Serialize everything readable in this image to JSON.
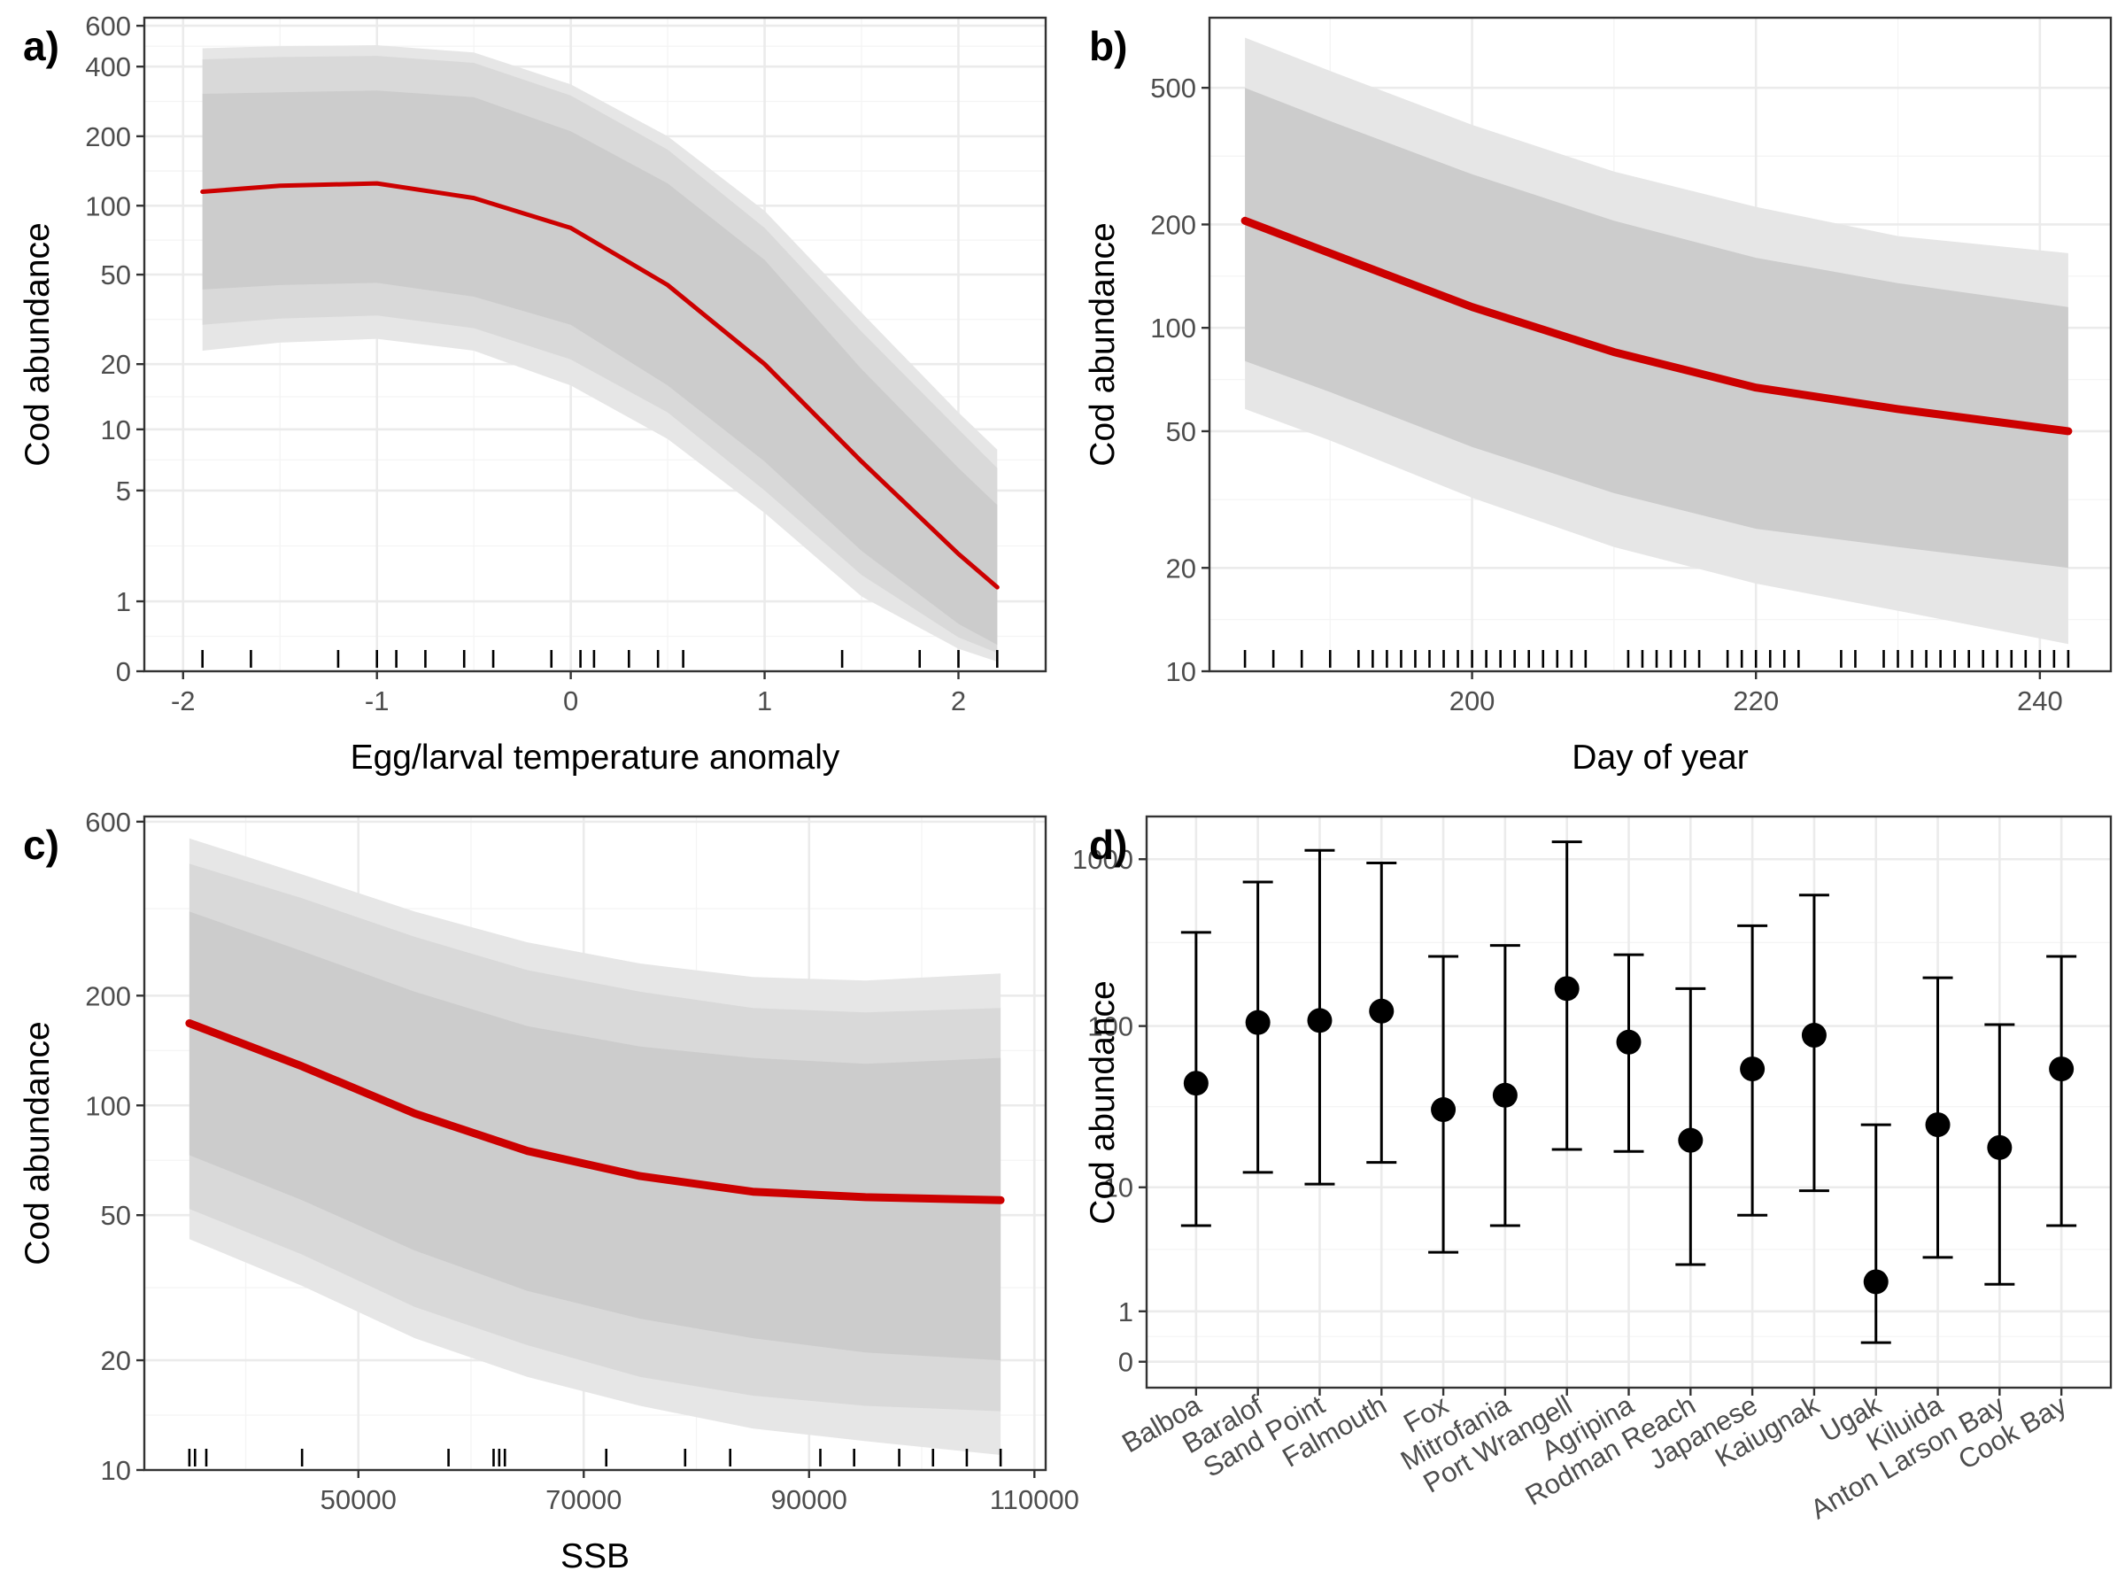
{
  "chart_data": [
    {
      "id": "a",
      "type": "line",
      "panel_label": "a)",
      "xlabel": "Egg/larval temperature anomaly",
      "ylabel": "Cod abundance",
      "y_scale": "log1p",
      "xlim": [
        -2.2,
        2.45
      ],
      "ylim": [
        0,
        650
      ],
      "x_ticks": [
        -2,
        -1,
        0,
        1,
        2
      ],
      "x_tick_labels": [
        "-2",
        "-1",
        "0",
        "1",
        "2"
      ],
      "y_ticks": [
        0,
        1,
        5,
        10,
        20,
        50,
        100,
        200,
        400,
        600
      ],
      "y_tick_labels": [
        "0",
        "1",
        "5",
        "10",
        "20",
        "50",
        "100",
        "200",
        "400",
        "600"
      ],
      "x": [
        -1.9,
        -1.5,
        -1.0,
        -0.5,
        0.0,
        0.5,
        1.0,
        1.5,
        2.0,
        2.2
      ],
      "fit": [
        115,
        122,
        125,
        108,
        80,
        45,
        20,
        7,
        2.2,
        1.3
      ],
      "inner_lower": [
        43,
        45,
        46,
        40,
        30,
        16,
        7,
        2.3,
        0.6,
        0.3
      ],
      "inner_upper": [
        305,
        310,
        315,
        295,
        210,
        125,
        58,
        19,
        6.5,
        4.2
      ],
      "mid_lower": [
        30,
        32,
        33,
        29,
        21,
        12,
        5,
        1.6,
        0.4,
        0.2
      ],
      "mid_upper": [
        430,
        440,
        445,
        415,
        300,
        175,
        80,
        28,
        10,
        6.5
      ],
      "outer_lower": [
        23,
        25,
        26,
        23,
        16,
        9,
        3.8,
        1.1,
        0.25,
        0.1
      ],
      "outer_upper": [
        480,
        490,
        495,
        460,
        335,
        200,
        95,
        34,
        12,
        8
      ],
      "rug": [
        -1.9,
        -1.65,
        -1.2,
        -1.0,
        -0.9,
        -0.75,
        -0.55,
        -0.4,
        -0.1,
        0.05,
        0.12,
        0.3,
        0.45,
        0.58,
        1.4,
        1.8,
        2.0,
        2.2
      ]
    },
    {
      "id": "b",
      "type": "line",
      "panel_label": "b)",
      "xlabel": "Day of year",
      "ylabel": "Cod abundance",
      "y_scale": "log",
      "xlim": [
        181.5,
        245.0
      ],
      "ylim": [
        10,
        800
      ],
      "x_ticks": [
        200,
        220,
        240
      ],
      "x_tick_labels": [
        "200",
        "220",
        "240"
      ],
      "y_ticks": [
        10,
        20,
        50,
        100,
        200,
        500
      ],
      "y_tick_labels": [
        "10",
        "20",
        "50",
        "100",
        "200",
        "500"
      ],
      "x": [
        184,
        190,
        200,
        210,
        220,
        230,
        242
      ],
      "fit": [
        205,
        165,
        115,
        85,
        67,
        58,
        50
      ],
      "inner_lower": [
        80,
        65,
        45,
        33,
        26,
        23,
        20
      ],
      "inner_upper": [
        500,
        400,
        280,
        205,
        160,
        135,
        115
      ],
      "outer_lower": [
        58,
        47,
        32,
        23,
        18,
        15,
        12
      ],
      "outer_upper": [
        700,
        560,
        390,
        285,
        225,
        185,
        165
      ],
      "rug": [
        184,
        186,
        188,
        190,
        192,
        193,
        194,
        195,
        196,
        197,
        198,
        199,
        200,
        201,
        202,
        203,
        204,
        205,
        206,
        207,
        208,
        211,
        212,
        213,
        214,
        215,
        216,
        218,
        219,
        220,
        221,
        222,
        223,
        226,
        227,
        229,
        230,
        231,
        232,
        233,
        234,
        235,
        236,
        237,
        238,
        239,
        240,
        241,
        242
      ]
    },
    {
      "id": "c",
      "type": "line",
      "panel_label": "c)",
      "xlabel": "SSB",
      "ylabel": "Cod abundance",
      "y_scale": "log",
      "xlim": [
        31000,
        111000
      ],
      "ylim": [
        10,
        620
      ],
      "x_ticks": [
        50000,
        70000,
        90000,
        110000
      ],
      "x_tick_labels": [
        "50000",
        "70000",
        "90000",
        "110000"
      ],
      "y_ticks": [
        10,
        20,
        50,
        100,
        200,
        600
      ],
      "y_tick_labels": [
        "10",
        "20",
        "50",
        "100",
        "200",
        "600"
      ],
      "x": [
        35000,
        45000,
        55000,
        65000,
        75000,
        85000,
        95000,
        107000
      ],
      "fit": [
        168,
        128,
        95,
        75,
        64,
        58,
        56,
        55
      ],
      "inner_lower": [
        73,
        55,
        40,
        31,
        26,
        23,
        21,
        20
      ],
      "inner_upper": [
        340,
        265,
        205,
        165,
        145,
        135,
        130,
        135
      ],
      "mid_lower": [
        52,
        39,
        28,
        22,
        18,
        16,
        15,
        14.5
      ],
      "mid_upper": [
        460,
        370,
        290,
        235,
        205,
        185,
        180,
        185
      ],
      "outer_lower": [
        43,
        32,
        23,
        18,
        15,
        13,
        12,
        11
      ],
      "outer_upper": [
        540,
        430,
        340,
        280,
        245,
        225,
        220,
        230
      ],
      "rug": [
        35000,
        35500,
        36500,
        45000,
        58000,
        62000,
        62500,
        63000,
        72000,
        79000,
        83000,
        91000,
        94000,
        98000,
        101000,
        104000,
        107000
      ]
    },
    {
      "id": "d",
      "type": "scatter",
      "panel_label": "d)",
      "xlabel": "",
      "ylabel": "Cod abundance",
      "y_scale": "log1p",
      "ylim": [
        -0.3,
        1800
      ],
      "y_ticks": [
        0,
        1,
        10,
        100,
        1000
      ],
      "y_tick_labels": [
        "0",
        "1",
        "10",
        "100",
        "1000"
      ],
      "categories": [
        "Balboa",
        "Baralof",
        "Sand Point",
        "Falmouth",
        "Fox",
        "Mitrofania",
        "Port Wrangell",
        "Agripina",
        "Rodman Reach",
        "Japanese",
        "Kaiugnak",
        "Ugak",
        "Kiluida",
        "Anton Larson Bay",
        "Cook Bay"
      ],
      "values": [
        45,
        105,
        108,
        123,
        31,
        38,
        168,
        80,
        20,
        55,
        88,
        2.0,
        25,
        18,
        55
      ],
      "lower": [
        5.5,
        12.5,
        10.5,
        14.5,
        3.5,
        5.5,
        17.5,
        17.0,
        2.8,
        6.5,
        9.5,
        0.3,
        3.2,
        1.9,
        5.5
      ],
      "upper": [
        365,
        730,
        1130,
        950,
        262,
        305,
        1270,
        268,
        168,
        400,
        610,
        25,
        195,
        102,
        262
      ]
    }
  ]
}
